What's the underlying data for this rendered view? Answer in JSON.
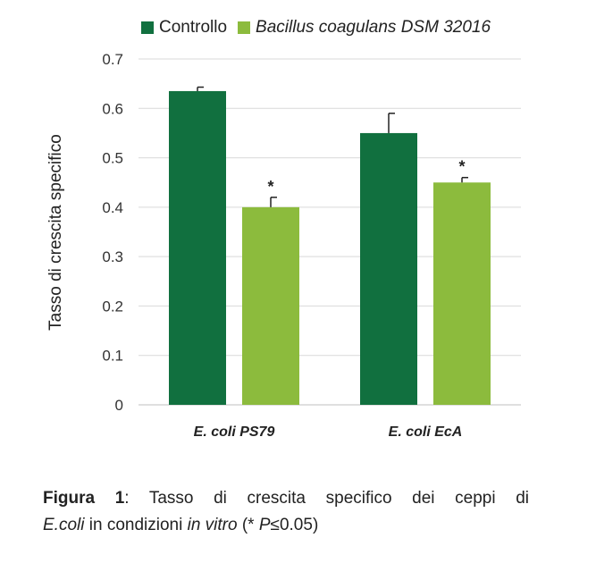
{
  "chart_data": {
    "type": "bar",
    "categories": [
      "E. coli PS79",
      "E. coli EcA"
    ],
    "series": [
      {
        "name": "Controllo",
        "color": "#11703f",
        "values": [
          0.635,
          0.55
        ],
        "errors": [
          0.008,
          0.04
        ],
        "significance": [
          "",
          ""
        ]
      },
      {
        "name": "Bacillus coagulans DSM 32016",
        "color": "#8cbb3d",
        "values": [
          0.4,
          0.45
        ],
        "errors": [
          0.02,
          0.01
        ],
        "significance": [
          "*",
          "*"
        ]
      }
    ],
    "ylabel": "Tasso di crescita specifico",
    "ylim": [
      0,
      0.7
    ],
    "yticks": [
      "0",
      "0.1",
      "0.2",
      "0.3",
      "0.4",
      "0.5",
      "0.6",
      "0.7"
    ],
    "grid": true,
    "legend_position": "top"
  },
  "caption": {
    "label": "Figura 1",
    "sep": ": ",
    "line1_rest": "Tasso di crescita specifico dei ceppi di",
    "species": "E.coli",
    "mid1": " in condizioni ",
    "in_vitro": "in vitro",
    "mid2": " (* ",
    "p": "P",
    "end": "≤0.05)"
  }
}
